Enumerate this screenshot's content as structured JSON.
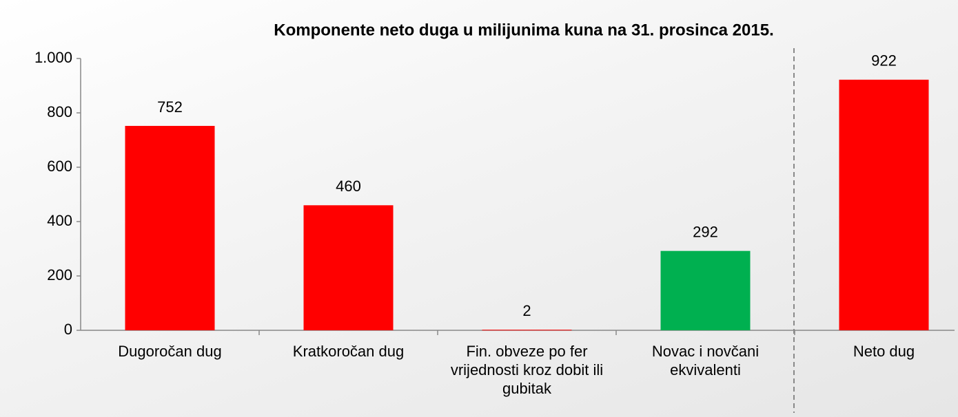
{
  "chart_data": {
    "type": "bar",
    "title": "Komponente neto duga u milijunima kuna na 31. prosinca 2015.",
    "categories": [
      "Dugoročan dug",
      "Kratkoročan dug",
      "Fin. obveze po fer vrijednosti kroz dobit ili gubitak",
      "Novac i novčani ekvivalenti",
      "Neto dug"
    ],
    "values": [
      752,
      460,
      2,
      292,
      922
    ],
    "colors": [
      "#ff0000",
      "#ff0000",
      "#ff0000",
      "#00b050",
      "#ff0000"
    ],
    "ylim": [
      0,
      1000
    ],
    "yticks": [
      0,
      200,
      400,
      600,
      800,
      {
        "value": 1000,
        "label": "1.000"
      }
    ],
    "grid": false
  }
}
